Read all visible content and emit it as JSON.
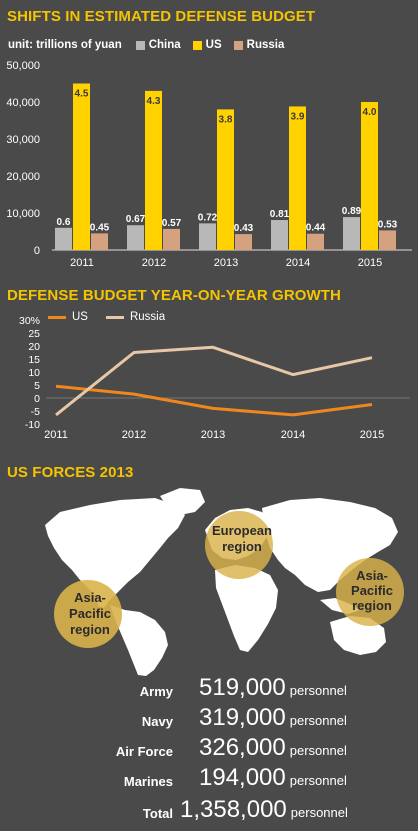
{
  "charts": {
    "budget_title": "SHIFTS IN ESTIMATED DEFENSE BUDGET",
    "budget_unit": "unit: trillions of yuan",
    "growth_title": "DEFENSE BUDGET YEAR-ON-YEAR GROWTH",
    "forces_title": "US FORCES 2013"
  },
  "colors": {
    "background": "#4a4a4a",
    "china": "#b8b8b8",
    "us": "#ffd200",
    "russia": "#d4a27e",
    "us_line": "#f0871e",
    "russia_line": "#e6c7a6",
    "map": "#ffffff",
    "region": "#d9b24a"
  },
  "chart_data": [
    {
      "type": "bar",
      "title": "SHIFTS IN ESTIMATED DEFENSE BUDGET",
      "categories": [
        "2011",
        "2012",
        "2013",
        "2014",
        "2015"
      ],
      "series": [
        {
          "name": "China",
          "values": [
            6000,
            6700,
            7200,
            8100,
            8900
          ],
          "labels": [
            "0.6",
            "0.67",
            "0.72",
            "0.81",
            "0.89"
          ]
        },
        {
          "name": "US",
          "values": [
            45000,
            43000,
            38000,
            38800,
            40000
          ],
          "labels": [
            "4.5",
            "4.3",
            "3.8",
            "3.9",
            "4.0"
          ]
        },
        {
          "name": "Russia",
          "values": [
            4500,
            5700,
            4300,
            4400,
            5300
          ],
          "labels": [
            "0.45",
            "0.57",
            "0.43",
            "0.44",
            "0.53"
          ]
        }
      ],
      "yticks": [
        "0",
        "10,000",
        "20,000",
        "30,000",
        "40,000",
        "50,000"
      ],
      "ylim": [
        0,
        50000
      ],
      "legend": "top-left"
    },
    {
      "type": "line",
      "title": "DEFENSE BUDGET YEAR-ON-YEAR GROWTH",
      "x": [
        "2011",
        "2012",
        "2013",
        "2014",
        "2015"
      ],
      "series": [
        {
          "name": "US",
          "values": [
            4.5,
            1.5,
            -4,
            -6.5,
            -2.5
          ]
        },
        {
          "name": "Russia",
          "values": [
            -6.5,
            17.5,
            19.5,
            9,
            15.5
          ]
        }
      ],
      "yticks": [
        "30%",
        "25",
        "20",
        "15",
        "10",
        "5",
        "0",
        "-5",
        "-10"
      ],
      "ylim": [
        -10,
        30
      ],
      "legend": "top"
    }
  ],
  "map": {
    "regions": [
      {
        "lines": [
          "European",
          "region"
        ]
      },
      {
        "lines": [
          "Asia-",
          "Pacific",
          "region"
        ]
      },
      {
        "lines": [
          "Asia-",
          "Pacific",
          "region"
        ]
      }
    ]
  },
  "forces": [
    {
      "name": "Army",
      "value": "519,000",
      "unit": "personnel"
    },
    {
      "name": "Navy",
      "value": "319,000",
      "unit": "personnel"
    },
    {
      "name": "Air Force",
      "value": "326,000",
      "unit": "personnel"
    },
    {
      "name": "Marines",
      "value": "194,000",
      "unit": "personnel"
    },
    {
      "name": "Total",
      "value": "1,358,000",
      "unit": "personnel"
    }
  ]
}
